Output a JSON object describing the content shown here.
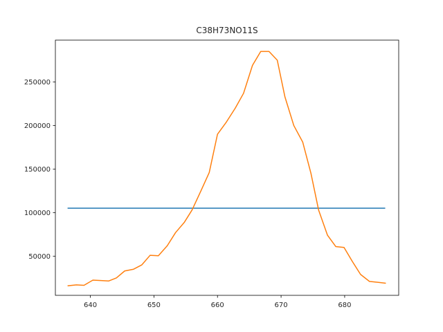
{
  "chart_data": {
    "type": "line",
    "title": "C38H73NO11S",
    "xlabel": "",
    "ylabel": "",
    "xlim": [
      634.5,
      688.5
    ],
    "ylim": [
      5000,
      298000
    ],
    "grid": false,
    "legend": "none",
    "x_ticks": [
      640,
      650,
      660,
      670,
      680
    ],
    "x_tick_labels": [
      "640",
      "650",
      "660",
      "670",
      "680"
    ],
    "y_ticks": [
      50000,
      100000,
      150000,
      200000,
      250000
    ],
    "y_tick_labels": [
      "50000",
      "100000",
      "150000",
      "200000",
      "250000"
    ],
    "series": [
      {
        "color": "#1f77b4",
        "x": [
          636.5,
          686.3
        ],
        "y": [
          105000,
          105000
        ]
      },
      {
        "color": "#ff7f0e",
        "x": [
          636.5,
          637.8,
          639.0,
          640.4,
          641.7,
          642.9,
          644.1,
          645.4,
          646.8,
          648.1,
          649.4,
          650.7,
          652.1,
          653.4,
          654.8,
          656.0,
          657.4,
          658.7,
          660.0,
          661.4,
          662.8,
          664.1,
          665.5,
          666.8,
          668.1,
          669.4,
          670.6,
          672.0,
          673.4,
          674.7,
          675.9,
          677.3,
          678.6,
          679.9,
          681.2,
          682.5,
          683.9,
          685.2,
          686.4
        ],
        "y": [
          16000,
          17000,
          16500,
          22500,
          22000,
          21500,
          25000,
          33000,
          35000,
          40000,
          51000,
          50500,
          62000,
          77000,
          89000,
          103000,
          125000,
          146000,
          190000,
          204000,
          220000,
          237000,
          269000,
          285000,
          285000,
          275000,
          233000,
          200000,
          181000,
          145000,
          103000,
          74000,
          61000,
          60000,
          44000,
          29000,
          21000,
          20000,
          19000
        ]
      }
    ]
  }
}
